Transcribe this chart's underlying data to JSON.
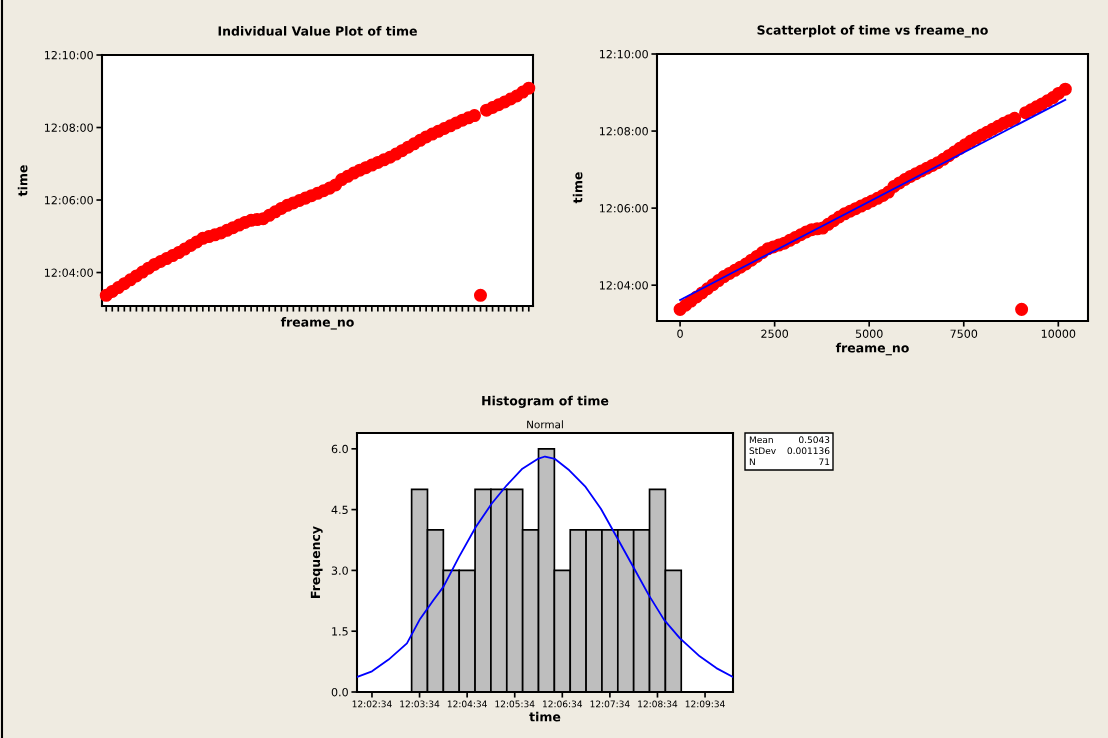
{
  "chart_data": [
    {
      "type": "scatter",
      "title": "Individual Value Plot of time",
      "xlabel": "freame_no",
      "ylabel": "time",
      "marker": "circle",
      "color": "#ff0000",
      "categories": [
        null,
        null,
        null,
        null,
        null,
        null,
        null,
        null,
        null,
        null,
        null,
        null,
        null,
        null,
        null,
        null,
        null,
        null,
        null,
        null,
        null,
        null,
        null,
        null,
        null,
        null,
        null,
        null,
        null,
        null,
        null,
        null,
        null,
        null,
        null,
        null,
        null,
        null,
        null,
        null,
        null,
        null,
        null,
        null,
        null,
        null,
        null,
        null,
        null,
        null,
        null,
        null,
        null,
        null,
        null,
        null,
        null,
        null,
        null,
        null,
        null,
        null,
        null,
        null,
        null,
        null,
        null,
        null,
        null,
        null,
        null
      ],
      "values": [
        12.0562,
        12.05798,
        12.05977,
        12.06155,
        12.06333,
        12.06512,
        12.06688,
        12.06867,
        12.07037,
        12.07173,
        12.0731,
        12.07447,
        12.07583,
        12.07747,
        12.0791,
        12.08075,
        12.08238,
        12.0832,
        12.08402,
        12.08483,
        12.08605,
        12.08727,
        12.08848,
        12.0897,
        12.09067,
        12.09103,
        12.09138,
        12.09297,
        12.09457,
        12.09615,
        12.09755,
        12.09865,
        12.09977,
        12.10087,
        12.10198,
        12.1031,
        12.10425,
        12.10547,
        12.10693,
        12.10938,
        12.11088,
        12.11238,
        12.1137,
        12.11488,
        12.11608,
        12.11727,
        12.11847,
        12.11965,
        12.12112,
        12.1227,
        12.12428,
        12.12585,
        12.12743,
        12.12902,
        12.1303,
        12.13158,
        12.13287,
        12.13413,
        12.13542,
        12.1367,
        12.13777,
        12.13883,
        12.0562,
        12.14128,
        12.14253,
        12.1438,
        12.14505,
        12.14645,
        12.14783,
        12.14963,
        12.15143
      ],
      "ylim": [
        12.05128,
        12.166667
      ],
      "yticks": [
        {
          "value": 12.066667,
          "label": "12:04:00"
        },
        {
          "value": 12.1,
          "label": "12:06:00"
        },
        {
          "value": 12.133333,
          "label": "12:08:00"
        },
        {
          "value": 12.166667,
          "label": "12:10:00"
        }
      ]
    },
    {
      "type": "scatter",
      "title": "Scatterplot of time vs freame_no",
      "xlabel": "freame_no",
      "ylabel": "time",
      "series": [
        {
          "type": "scatter",
          "marker": "circle",
          "color": "#ff0000",
          "x": [
            0,
            145,
            290,
            435,
            580,
            725,
            870,
            1015,
            1160,
            1305,
            1450,
            1595,
            1740,
            1885,
            2030,
            2175,
            2320,
            2465,
            2610,
            2755,
            2900,
            3045,
            3190,
            3335,
            3480,
            3625,
            3770,
            3915,
            4060,
            4205,
            4350,
            4495,
            4640,
            4785,
            4930,
            5075,
            5220,
            5365,
            5510,
            5655,
            5800,
            5945,
            6090,
            6235,
            6380,
            6525,
            6670,
            6815,
            6960,
            7105,
            7250,
            7395,
            7540,
            7685,
            7830,
            7975,
            8120,
            8265,
            8410,
            8555,
            8700,
            8845,
            9030,
            9135,
            9280,
            9425,
            9570,
            9715,
            9860,
            10005,
            10185
          ],
          "values": [
            12.0562,
            12.05798,
            12.05977,
            12.06155,
            12.06333,
            12.06512,
            12.06688,
            12.06867,
            12.07037,
            12.07173,
            12.0731,
            12.07447,
            12.07583,
            12.07747,
            12.0791,
            12.08075,
            12.08238,
            12.0832,
            12.08402,
            12.08483,
            12.08605,
            12.08727,
            12.08848,
            12.0897,
            12.09067,
            12.09103,
            12.09138,
            12.09297,
            12.09457,
            12.09615,
            12.09755,
            12.09865,
            12.09977,
            12.10087,
            12.10198,
            12.1031,
            12.10425,
            12.10547,
            12.10693,
            12.10938,
            12.11088,
            12.11238,
            12.1137,
            12.11488,
            12.11608,
            12.11727,
            12.11847,
            12.11965,
            12.12112,
            12.1227,
            12.12428,
            12.12585,
            12.12743,
            12.12902,
            12.1303,
            12.13158,
            12.13287,
            12.13413,
            12.13542,
            12.1367,
            12.13777,
            12.13883,
            12.0562,
            12.14128,
            12.14253,
            12.1438,
            12.14505,
            12.14645,
            12.14783,
            12.14963,
            12.15143
          ]
        },
        {
          "type": "line",
          "color": "#0000ff",
          "x": [
            0,
            10185
          ],
          "values": [
            12.06028,
            12.14688
          ]
        }
      ],
      "xlim": [
        -610,
        10785
      ],
      "xticks": [
        0,
        2500,
        5000,
        7500,
        10000
      ],
      "ylim": [
        12.05117,
        12.166667
      ],
      "yticks": [
        {
          "value": 12.066667,
          "label": "12:04:00"
        },
        {
          "value": 12.1,
          "label": "12:06:00"
        },
        {
          "value": 12.133333,
          "label": "12:08:00"
        },
        {
          "value": 12.166667,
          "label": "12:10:00"
        }
      ]
    },
    {
      "type": "histogram",
      "title": "Histogram of time",
      "subtitle": "Normal",
      "xlabel": "time",
      "ylabel": "Frequency",
      "color": "#bebebe",
      "bins": [
        12.056667,
        12.062222,
        12.067778,
        12.073333,
        12.078889,
        12.084444,
        12.09,
        12.095556,
        12.101111,
        12.106667,
        12.112222,
        12.117778,
        12.123333,
        12.128889,
        12.134444,
        12.14,
        12.145556,
        12.151111
      ],
      "values": [
        5,
        4,
        3,
        3,
        5,
        5,
        5,
        4,
        6,
        3,
        4,
        4,
        4,
        4,
        4,
        5,
        3
      ],
      "series": [
        {
          "type": "line",
          "color": "#0000ff",
          "x": [
            12.037533,
            12.042778,
            12.048606,
            12.055016,
            12.059444,
            12.06434,
            12.067836,
            12.073314,
            12.079142,
            12.084736,
            12.089981,
            12.095459,
            12.10082,
            12.103384,
            12.106881,
            12.111893,
            12.117603,
            12.122964,
            12.128442,
            12.13427,
            12.139748,
            12.145109,
            12.150587,
            12.15758,
            12.163407,
            12.169235
          ],
          "values": [
            0.37,
            0.51,
            0.8,
            1.2,
            1.78,
            2.27,
            2.6,
            3.34,
            4.07,
            4.65,
            5.1,
            5.51,
            5.75,
            5.81,
            5.75,
            5.47,
            5.06,
            4.52,
            3.83,
            3.09,
            2.39,
            1.78,
            1.33,
            0.88,
            0.59,
            0.37
          ]
        }
      ],
      "xlim": [
        12.037533,
        12.169235
      ],
      "xticks": [
        {
          "value": 12.042778,
          "label": "12:02:34"
        },
        {
          "value": 12.059444,
          "label": "12:03:34"
        },
        {
          "value": 12.076111,
          "label": "12:04:34"
        },
        {
          "value": 12.092778,
          "label": "12:05:34"
        },
        {
          "value": 12.109444,
          "label": "12:06:34"
        },
        {
          "value": 12.126111,
          "label": "12:07:34"
        },
        {
          "value": 12.142778,
          "label": "12:08:34"
        },
        {
          "value": 12.159444,
          "label": "12:09:34"
        }
      ],
      "ylim": [
        0,
        6.39
      ],
      "yticks": [
        {
          "value": 0,
          "label": "0.0"
        },
        1.5,
        {
          "value": 3,
          "label": "3.0"
        },
        4.5,
        {
          "value": 6,
          "label": "6.0"
        }
      ],
      "annotations": [
        "Mean 0.5043",
        "StDev 0.001136",
        "N 71"
      ]
    }
  ]
}
